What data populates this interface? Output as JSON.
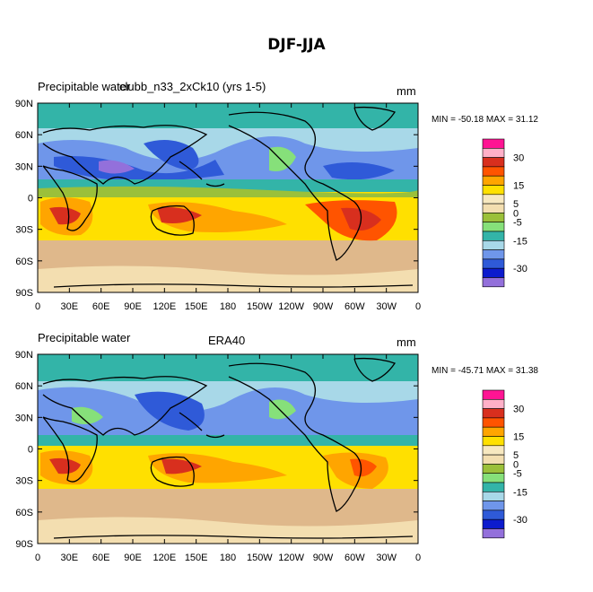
{
  "figure": {
    "title": "DJF-JJA"
  },
  "colors": {
    "levels": [
      -35,
      -30,
      -25,
      -20,
      -15,
      -10,
      -5,
      0,
      5,
      10,
      15,
      20,
      25,
      30,
      35
    ],
    "fills": [
      "#9370db",
      "#0c1bcd",
      "#2f5ad8",
      "#6f96ea",
      "#a8d8e8",
      "#33b4a8",
      "#86e07a",
      "#9bc03a",
      "#f3deb0",
      "#f7e8c0",
      "#ffe000",
      "#ffa500",
      "#ff5400",
      "#d82f1e",
      "#ffb0c8",
      "#ff1493"
    ],
    "labels": [
      {
        "level": 30,
        "text": "30"
      },
      {
        "level": 15,
        "text": "15"
      },
      {
        "level": 5,
        "text": "5"
      },
      {
        "level": 0,
        "text": "0"
      },
      {
        "level": -5,
        "text": "-5"
      },
      {
        "level": -15,
        "text": "-15"
      },
      {
        "level": -30,
        "text": "-30"
      }
    ]
  },
  "axes": {
    "x_ticks": [
      "0",
      "30E",
      "60E",
      "90E",
      "120E",
      "150E",
      "180",
      "150W",
      "120W",
      "90W",
      "60W",
      "30W",
      "0"
    ],
    "y_ticks": [
      "90N",
      "60N",
      "30N",
      "0",
      "30S",
      "60S",
      "90S"
    ]
  },
  "panels": [
    {
      "left_label": "Precipitable water",
      "center_label": "clubb_n33_2xCk10 (yrs 1-5)",
      "units": "mm",
      "stats": "MIN = -50.18 MAX =  31.12"
    },
    {
      "left_label": "Precipitable water",
      "center_label": "ERA40",
      "units": "mm",
      "stats": "MIN = -45.71 MAX =  31.38"
    }
  ],
  "chart_data": [
    {
      "type": "heatmap",
      "title": "Precipitable water  clubb_n33_2xCk10 (yrs 1-5)",
      "units": "mm",
      "x": [
        "0",
        "30E",
        "60E",
        "90E",
        "120E",
        "150E",
        "180",
        "150W",
        "120W",
        "90W",
        "60W",
        "30W",
        "0"
      ],
      "y": [
        "90N",
        "60N",
        "30N",
        "0",
        "30S",
        "60S",
        "90S"
      ],
      "xlim": [
        0,
        360
      ],
      "ylim": [
        -90,
        90
      ],
      "min": -50.18,
      "max": 31.12,
      "grid": false
    },
    {
      "type": "heatmap",
      "title": "Precipitable water  ERA40",
      "units": "mm",
      "x": [
        "0",
        "30E",
        "60E",
        "90E",
        "120E",
        "150E",
        "180",
        "150W",
        "120W",
        "90W",
        "60W",
        "30W",
        "0"
      ],
      "y": [
        "90N",
        "60N",
        "30N",
        "0",
        "30S",
        "60S",
        "90S"
      ],
      "xlim": [
        0,
        360
      ],
      "ylim": [
        -90,
        90
      ],
      "min": -45.71,
      "max": 31.38,
      "grid": false
    }
  ]
}
